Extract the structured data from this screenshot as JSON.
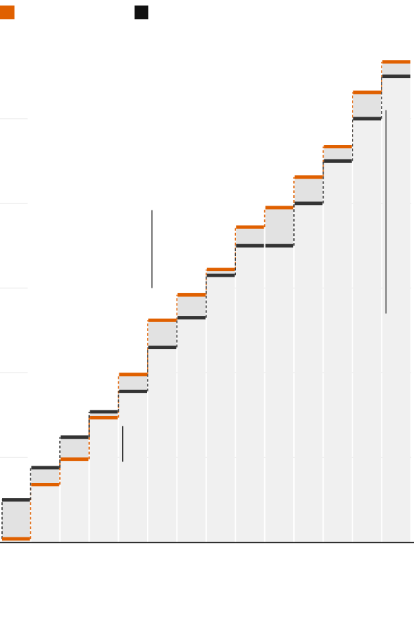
{
  "colors": {
    "series_a": "#e06000",
    "series_b": "#333333",
    "column_fill": "#f0f0f0",
    "gap_fill": "#e2e2e2",
    "gridline": "#e6e6e6",
    "baseline": "#222222",
    "legend_b_swatch": "#111111"
  },
  "chart_data": {
    "type": "bar",
    "subtype": "step-comparison",
    "title": "",
    "xlabel": "",
    "ylabel": "",
    "ylim": [
      0,
      5.7
    ],
    "y_gridlines": [
      1,
      2,
      3,
      4,
      5
    ],
    "grid": true,
    "legend_position": "top-left",
    "categories": [
      "",
      "",
      "",
      "",
      "",
      "",
      "",
      "",
      "",
      "",
      "",
      "",
      "",
      ""
    ],
    "series": [
      {
        "color_key": "series_a",
        "values": [
          0.04,
          0.68,
          0.98,
          1.47,
          1.98,
          2.62,
          2.92,
          3.22,
          3.72,
          3.95,
          4.31,
          4.67,
          5.31,
          5.67
        ]
      },
      {
        "color_key": "series_b",
        "values": [
          0.5,
          0.88,
          1.24,
          1.54,
          1.78,
          2.3,
          2.65,
          3.15,
          3.5,
          3.5,
          4.0,
          4.5,
          5.0,
          5.5
        ]
      }
    ],
    "annotation_lines": [
      {
        "x_index": 4.5,
        "y_from": 0.95,
        "y_to": 1.37
      },
      {
        "x_index": 5.5,
        "y_from": 3.0,
        "y_to": 3.92
      },
      {
        "x_index": 13.5,
        "y_from": 2.7,
        "y_to": 5.1
      }
    ]
  }
}
